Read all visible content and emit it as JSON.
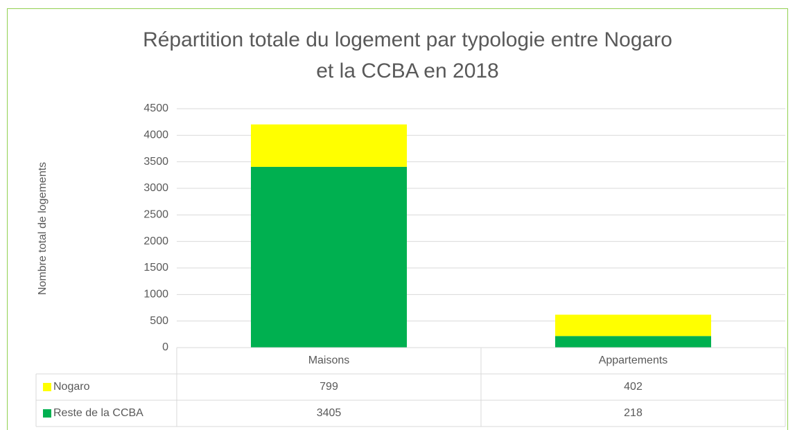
{
  "chart_data": {
    "type": "bar",
    "stacked": true,
    "title": [
      "Répartition totale du logement par typologie entre Nogaro",
      "et la CCBA en 2018"
    ],
    "y_label": "Nombre total de logements",
    "categories": [
      "Maisons",
      "Appartements"
    ],
    "series": [
      {
        "name": "Nogaro",
        "color": "#ffff00",
        "values": [
          799,
          402
        ]
      },
      {
        "name": "Reste de la CCBA",
        "color": "#00b050",
        "values": [
          3405,
          218
        ]
      }
    ],
    "ylim": [
      0,
      4500
    ],
    "yticks": [
      0,
      500,
      1000,
      1500,
      2000,
      2500,
      3000,
      3500,
      4000,
      4500
    ],
    "grid": true,
    "data_table": true
  }
}
